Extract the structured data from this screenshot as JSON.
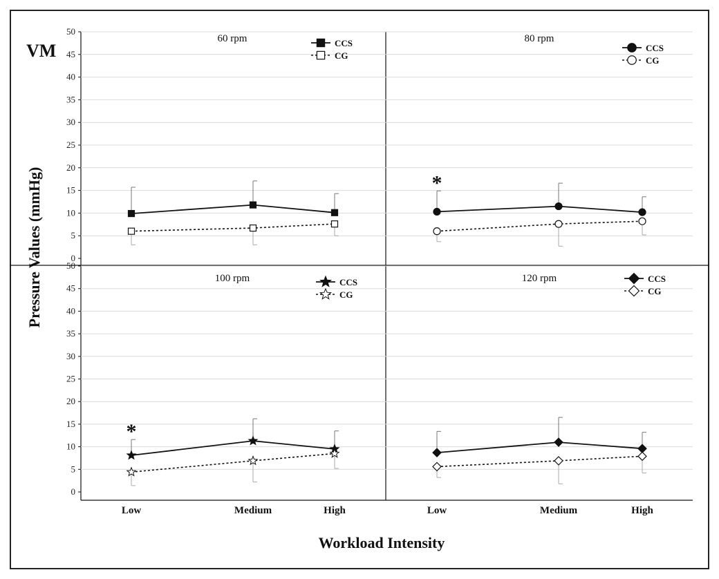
{
  "figure": {
    "tag": "VM",
    "ylabel": "Pressure Values (mmHg)",
    "xlabel": "Workload Intensity"
  },
  "chart_data": [
    {
      "type": "line",
      "title": "60 rpm",
      "categories": [
        "Low",
        "Medium",
        "High"
      ],
      "ylim": [
        0,
        50
      ],
      "yticks": [
        0,
        5,
        10,
        15,
        20,
        25,
        30,
        35,
        40,
        45,
        50
      ],
      "grid": true,
      "legend": "top-right",
      "marker": "square",
      "significance": [],
      "series": [
        {
          "name": "CCS",
          "style": "solid",
          "filled": true,
          "values": [
            9.9,
            11.8,
            10.1
          ],
          "err": [
            5.8,
            5.3,
            4.2
          ]
        },
        {
          "name": "CG",
          "style": "dotted",
          "filled": false,
          "values": [
            6.0,
            6.7,
            7.6
          ],
          "err": [
            3.0,
            3.7,
            2.6
          ]
        }
      ]
    },
    {
      "type": "line",
      "title": "80 rpm",
      "categories": [
        "Low",
        "Medium",
        "High"
      ],
      "ylim": [
        0,
        50
      ],
      "yticks": [
        0,
        5,
        10,
        15,
        20,
        25,
        30,
        35,
        40,
        45,
        50
      ],
      "grid": true,
      "legend": "top-right",
      "marker": "circle",
      "significance": [
        {
          "category": "Low",
          "label": "*"
        }
      ],
      "series": [
        {
          "name": "CCS",
          "style": "solid",
          "filled": true,
          "values": [
            10.3,
            11.5,
            10.2
          ],
          "err": [
            4.6,
            5.1,
            3.4
          ]
        },
        {
          "name": "CG",
          "style": "dotted",
          "filled": false,
          "values": [
            6.0,
            7.6,
            8.2
          ],
          "err": [
            2.3,
            4.9,
            3.0
          ]
        }
      ]
    },
    {
      "type": "line",
      "title": "100 rpm",
      "categories": [
        "Low",
        "Medium",
        "High"
      ],
      "ylim": [
        0,
        50
      ],
      "yticks": [
        0,
        5,
        10,
        15,
        20,
        25,
        30,
        35,
        40,
        45,
        50
      ],
      "grid": true,
      "legend": "top-right",
      "marker": "star",
      "significance": [
        {
          "category": "Low",
          "label": "*"
        }
      ],
      "series": [
        {
          "name": "CCS",
          "style": "solid",
          "filled": true,
          "values": [
            8.1,
            11.3,
            9.5
          ],
          "err": [
            3.5,
            4.9,
            4.0
          ]
        },
        {
          "name": "CG",
          "style": "dotted",
          "filled": false,
          "values": [
            4.4,
            6.9,
            8.5
          ],
          "err": [
            3.0,
            4.7,
            3.3
          ]
        }
      ]
    },
    {
      "type": "line",
      "title": "120 rpm",
      "categories": [
        "Low",
        "Medium",
        "High"
      ],
      "ylim": [
        0,
        50
      ],
      "yticks": [
        0,
        5,
        10,
        15,
        20,
        25,
        30,
        35,
        40,
        45,
        50
      ],
      "grid": true,
      "legend": "top-right",
      "marker": "diamond",
      "significance": [],
      "series": [
        {
          "name": "CCS",
          "style": "solid",
          "filled": true,
          "values": [
            8.7,
            11.0,
            9.6
          ],
          "err": [
            4.7,
            5.5,
            3.6
          ]
        },
        {
          "name": "CG",
          "style": "dotted",
          "filled": false,
          "values": [
            5.6,
            6.9,
            7.9
          ],
          "err": [
            2.4,
            5.1,
            3.7
          ]
        }
      ]
    }
  ]
}
